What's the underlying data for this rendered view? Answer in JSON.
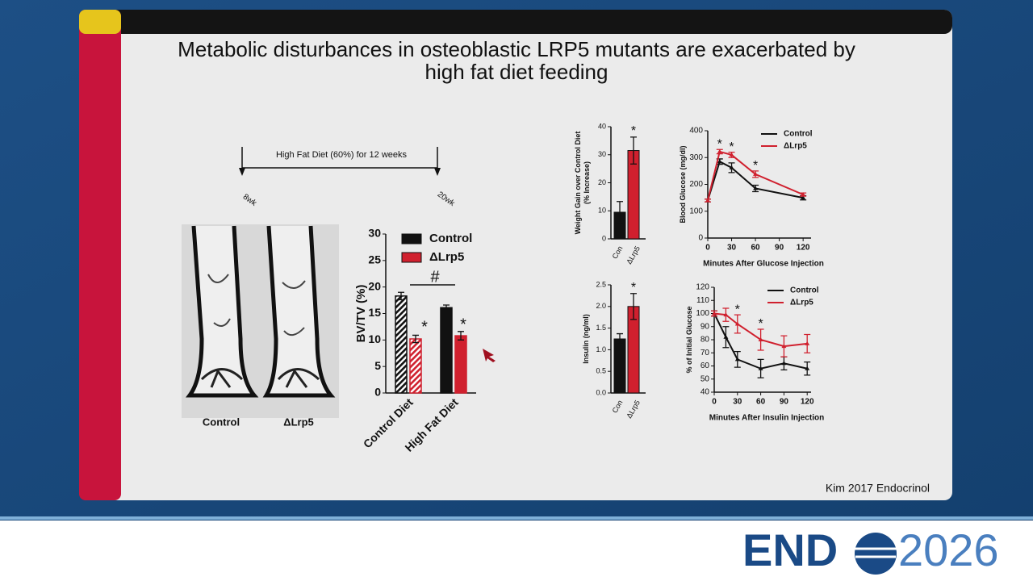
{
  "slide": {
    "title": "Metabolic disturbances in osteoblastic LRP5 mutants are exacerbated by high fat diet feeding",
    "timeline": {
      "label": "High Fat Diet (60%) for 12 weeks",
      "start": "8wk",
      "end": "20wk"
    },
    "image_labels": [
      "Control",
      "ΔLrp5"
    ],
    "citation": "Kim 2017 Endocrinol",
    "logo": {
      "left": "END",
      "right": "2026"
    }
  },
  "chart_data": [
    {
      "type": "bar",
      "ylabel": [
        "BV/TV (%)"
      ],
      "categories": [
        "Control Diet",
        "High Fat Diet"
      ],
      "series": [
        {
          "name": "Control",
          "color": "#111111",
          "values": [
            18.3,
            16.1
          ],
          "errors": [
            0.7,
            0.5
          ]
        },
        {
          "name": "ΔLrp5",
          "color": "#d0202e",
          "values": [
            10.2,
            10.8
          ],
          "errors": [
            0.7,
            0.8
          ]
        }
      ],
      "ylim": [
        0,
        30
      ],
      "yticks": [
        0,
        5,
        10,
        15,
        20,
        25,
        30
      ],
      "legend": "top-left",
      "annotations": [
        "#",
        "*",
        "*"
      ]
    },
    {
      "type": "bar",
      "ylabel": [
        "Weight Gain over Control Diet",
        "(% Increase)"
      ],
      "categories": [
        "Con",
        "ΔLrp5"
      ],
      "values": [
        9.5,
        31.5
      ],
      "errors": [
        3.8,
        4.8
      ],
      "colors": [
        "#111111",
        "#d0202e"
      ],
      "ylim": [
        0,
        40
      ],
      "yticks": [
        0,
        10,
        20,
        30,
        40
      ],
      "annotations": [
        "*"
      ]
    },
    {
      "type": "bar",
      "ylabel": [
        "Insulin (ng/ml)"
      ],
      "categories": [
        "Con",
        "ΔLrp5"
      ],
      "values": [
        1.25,
        2.0
      ],
      "errors": [
        0.12,
        0.3
      ],
      "colors": [
        "#111111",
        "#d0202e"
      ],
      "ylim": [
        0,
        2.5
      ],
      "yticks": [
        {
          "value": 0,
          "label": "0.0"
        },
        0.5,
        {
          "value": 1,
          "label": "1.0"
        },
        1.5,
        {
          "value": 2,
          "label": "2.0"
        },
        2.5
      ],
      "annotations": [
        "*"
      ]
    },
    {
      "type": "line",
      "ylabel": [
        "Blood Glucose (mg/dl)"
      ],
      "xlabel": "Minutes After Glucose Injection",
      "x": [
        0,
        15,
        30,
        60,
        120
      ],
      "series": [
        {
          "name": "Control",
          "color": "#111111",
          "values": [
            140,
            285,
            262,
            185,
            150
          ],
          "errors": [
            5,
            10,
            18,
            12,
            8
          ]
        },
        {
          "name": "ΔLrp5",
          "color": "#d0202e",
          "values": [
            140,
            322,
            310,
            238,
            162
          ],
          "errors": [
            5,
            8,
            10,
            12,
            6
          ]
        }
      ],
      "xlim": [
        0,
        130
      ],
      "xticks": [
        0,
        30,
        60,
        90,
        120
      ],
      "ylim": [
        0,
        400
      ],
      "yticks": [
        0,
        100,
        200,
        300,
        400
      ],
      "legend": "top-right",
      "annotations": [
        "*",
        "*",
        "*"
      ]
    },
    {
      "type": "line",
      "ylabel": [
        "% of Initial Glucose"
      ],
      "xlabel": "Minutes After Insulin Injection",
      "x": [
        0,
        15,
        30,
        60,
        90,
        120
      ],
      "series": [
        {
          "name": "Control",
          "color": "#111111",
          "values": [
            100,
            82,
            65,
            58,
            62,
            58
          ],
          "errors": [
            2,
            8,
            6,
            7,
            5,
            5
          ]
        },
        {
          "name": "ΔLrp5",
          "color": "#d0202e",
          "values": [
            100,
            99,
            92,
            80,
            75,
            77
          ],
          "errors": [
            2,
            5,
            7,
            8,
            8,
            7
          ]
        }
      ],
      "xlim": [
        0,
        125
      ],
      "xticks": [
        0,
        30,
        60,
        90,
        120
      ],
      "ylim": [
        40,
        120
      ],
      "yticks": [
        40,
        50,
        60,
        70,
        80,
        90,
        100,
        110,
        120
      ],
      "legend": "top-right",
      "annotations": [
        "*",
        "*"
      ]
    }
  ]
}
